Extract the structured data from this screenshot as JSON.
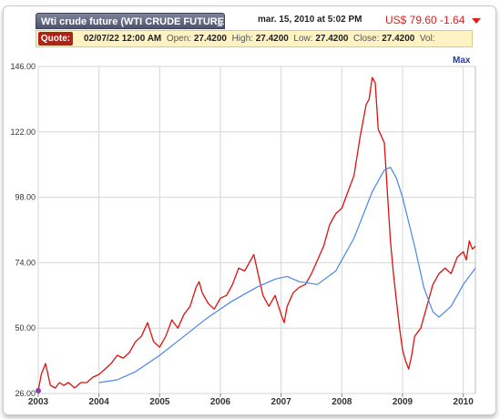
{
  "header": {
    "title": "Wti crude future (WTI CRUDE FUTURE",
    "date_time": "mar. 15, 2010 at 5:02 PM",
    "price": "US$ 79.60 -1.64"
  },
  "quote": {
    "label": "Quote:",
    "datetime": "02/07/22 12:00 AM",
    "open_label": "Open:",
    "open": "27.4200",
    "high_label": "High:",
    "high": "27.4200",
    "low_label": "Low:",
    "low": "27.4200",
    "close_label": "Close:",
    "close": "27.4200",
    "vol_label": "Vol:"
  },
  "range_label": "Max",
  "colors": {
    "price_line": "#dd1111",
    "moving_average": "#4a86e8",
    "grid": "#d6d6d6"
  },
  "chart_data": {
    "type": "line",
    "y_ticks": [
      "26.00",
      "50.00",
      "74.00",
      "98.00",
      "122.00",
      "146.00"
    ],
    "ylim": [
      26,
      146
    ],
    "x_ticks": [
      "2003",
      "2004",
      "2005",
      "2006",
      "2007",
      "2008",
      "2009",
      "2010"
    ],
    "x_tick_years": [
      2003,
      2004,
      2005,
      2006,
      2007,
      2008,
      2009,
      2010
    ],
    "xlim": [
      2003.0,
      2010.2
    ],
    "grid": true,
    "series": [
      {
        "key": "price",
        "x": [
          2003.0,
          2003.05,
          2003.12,
          2003.2,
          2003.28,
          2003.35,
          2003.42,
          2003.5,
          2003.6,
          2003.7,
          2003.8,
          2003.9,
          2004.0,
          2004.1,
          2004.2,
          2004.3,
          2004.4,
          2004.5,
          2004.6,
          2004.7,
          2004.8,
          2004.9,
          2005.0,
          2005.1,
          2005.2,
          2005.3,
          2005.4,
          2005.5,
          2005.6,
          2005.65,
          2005.7,
          2005.8,
          2005.9,
          2006.0,
          2006.1,
          2006.2,
          2006.3,
          2006.4,
          2006.5,
          2006.55,
          2006.6,
          2006.7,
          2006.8,
          2006.9,
          2007.0,
          2007.05,
          2007.1,
          2007.2,
          2007.3,
          2007.4,
          2007.5,
          2007.6,
          2007.7,
          2007.8,
          2007.9,
          2008.0,
          2008.1,
          2008.2,
          2008.3,
          2008.4,
          2008.45,
          2008.5,
          2008.55,
          2008.6,
          2008.7,
          2008.75,
          2008.8,
          2008.85,
          2008.9,
          2008.95,
          2009.0,
          2009.05,
          2009.1,
          2009.15,
          2009.2,
          2009.3,
          2009.4,
          2009.45,
          2009.5,
          2009.6,
          2009.7,
          2009.8,
          2009.9,
          2010.0,
          2010.05,
          2010.1,
          2010.15,
          2010.2
        ],
        "values": [
          27,
          33,
          37,
          29,
          28,
          30,
          29,
          30,
          28,
          30,
          30,
          32,
          33,
          35,
          37,
          40,
          39,
          41,
          45,
          47,
          52,
          45,
          43,
          47,
          53,
          50,
          55,
          58,
          65,
          67,
          63,
          59,
          57,
          61,
          62,
          66,
          72,
          71,
          75,
          77,
          72,
          62,
          58,
          62,
          55,
          52,
          58,
          63,
          65,
          66,
          70,
          75,
          80,
          88,
          92,
          94,
          100,
          106,
          120,
          132,
          134,
          142,
          140,
          123,
          118,
          100,
          82,
          70,
          60,
          50,
          42,
          38,
          35,
          40,
          47,
          50,
          58,
          62,
          66,
          70,
          72,
          70,
          76,
          78,
          75,
          82,
          79,
          80
        ]
      },
      {
        "key": "moving_average",
        "x": [
          2004.0,
          2004.3,
          2004.6,
          2005.0,
          2005.4,
          2005.8,
          2006.2,
          2006.6,
          2006.9,
          2007.1,
          2007.3,
          2007.6,
          2007.9,
          2008.2,
          2008.5,
          2008.7,
          2008.8,
          2008.9,
          2009.0,
          2009.2,
          2009.35,
          2009.5,
          2009.6,
          2009.8,
          2010.0,
          2010.2
        ],
        "values": [
          30,
          31,
          34,
          40,
          47,
          54,
          60,
          65,
          68,
          69,
          67,
          66,
          71,
          83,
          100,
          108,
          109,
          105,
          98,
          80,
          65,
          56,
          54,
          58,
          66,
          72
        ]
      }
    ]
  }
}
